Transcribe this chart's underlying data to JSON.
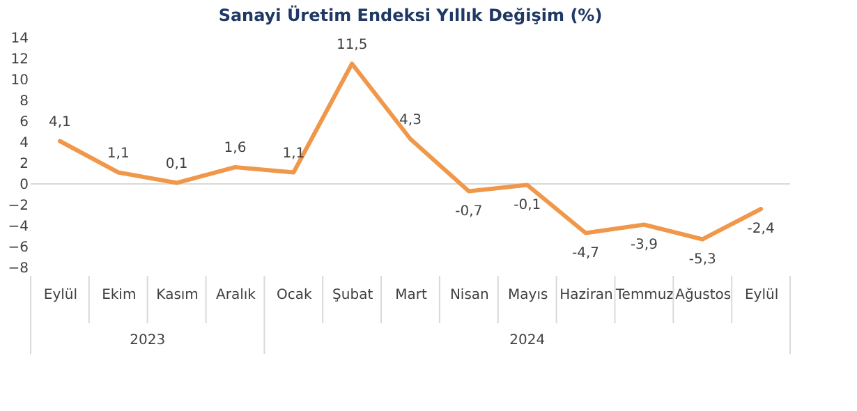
{
  "chart_data": {
    "type": "line",
    "title": "Sanayi Üretim Endeksi Yıllık Değişim (%)",
    "categories": [
      "Eylül",
      "Ekim",
      "Kasım",
      "Aralık",
      "Ocak",
      "Şubat",
      "Mart",
      "Nisan",
      "Mayıs",
      "Haziran",
      "Temmuz",
      "Ağustos",
      "Eylül"
    ],
    "series": [
      {
        "color": "#f0974a",
        "values": [
          4.1,
          1.1,
          0.1,
          1.6,
          1.1,
          11.5,
          4.3,
          -0.7,
          -0.1,
          -4.7,
          -3.9,
          -5.3,
          -2.4
        ],
        "value_labels": [
          "4,1",
          "1,1",
          "0,1",
          "1,6",
          "1,1",
          "11,5",
          "4,3",
          "-0,7",
          "-0,1",
          "-4,7",
          "-3,9",
          "-5,3",
          "-2,4"
        ]
      }
    ],
    "ylim": [
      -8,
      14
    ],
    "yticks": [
      -8,
      -6,
      -4,
      -2,
      0,
      2,
      4,
      6,
      8,
      10,
      12,
      14
    ],
    "annotations": [
      "2023",
      "2024"
    ],
    "marker": "none",
    "line_style": "solid"
  }
}
